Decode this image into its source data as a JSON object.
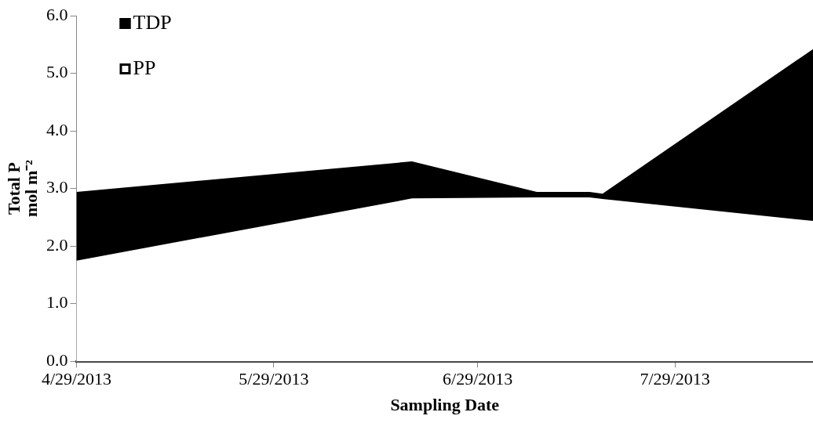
{
  "chart_data": {
    "type": "area",
    "stacked": true,
    "xlabel": "Sampling Date",
    "ylabel": "Total P\nmol m⁻²",
    "x": [
      "2013-04-29",
      "2013-06-19",
      "2013-07-08",
      "2013-07-16",
      "2013-07-18",
      "2013-08-19"
    ],
    "series": [
      {
        "name": "PP",
        "color": "#ffffff",
        "values": [
          1.76,
          2.84,
          2.86,
          2.86,
          2.83,
          2.45
        ]
      },
      {
        "name": "TDP",
        "color": "#000000",
        "values": [
          1.18,
          0.63,
          0.08,
          0.08,
          0.08,
          2.97
        ]
      }
    ],
    "xlim": [
      "2013-04-29",
      "2013-08-19"
    ],
    "xticks": [
      {
        "value": "2013-04-29",
        "label": "4/29/2013"
      },
      {
        "value": "2013-05-29",
        "label": "5/29/2013"
      },
      {
        "value": "2013-06-29",
        "label": "6/29/2013"
      },
      {
        "value": "2013-07-29",
        "label": "7/29/2013"
      }
    ],
    "ylim": [
      0,
      6
    ],
    "yticks": [
      {
        "value": 0,
        "label": "0.0"
      },
      {
        "value": 1,
        "label": "1.0"
      },
      {
        "value": 2,
        "label": "2.0"
      },
      {
        "value": 3,
        "label": "3.0"
      },
      {
        "value": 4,
        "label": "4.0"
      },
      {
        "value": 5,
        "label": "5.0"
      },
      {
        "value": 6,
        "label": "6.0"
      }
    ],
    "grid": false,
    "legend": "top left"
  }
}
